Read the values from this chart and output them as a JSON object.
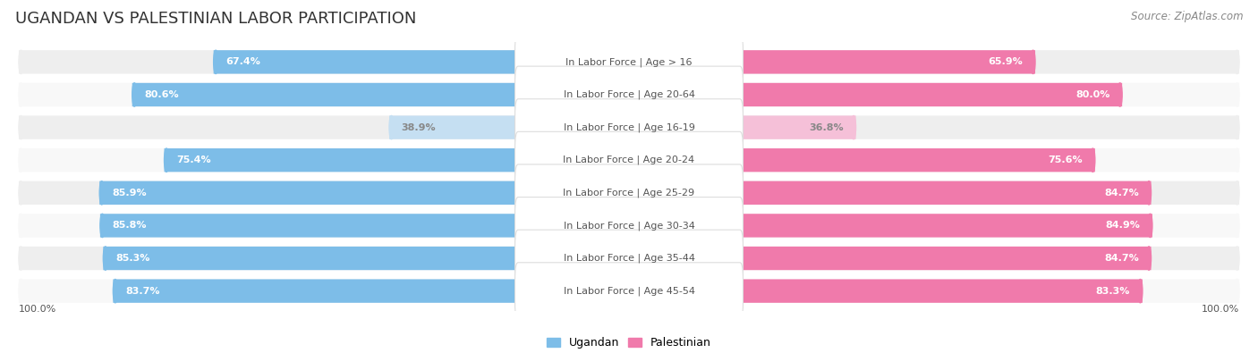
{
  "title": "UGANDAN VS PALESTINIAN LABOR PARTICIPATION",
  "source": "Source: ZipAtlas.com",
  "categories": [
    "In Labor Force | Age > 16",
    "In Labor Force | Age 20-64",
    "In Labor Force | Age 16-19",
    "In Labor Force | Age 20-24",
    "In Labor Force | Age 25-29",
    "In Labor Force | Age 30-34",
    "In Labor Force | Age 35-44",
    "In Labor Force | Age 45-54"
  ],
  "ugandan_values": [
    67.4,
    80.6,
    38.9,
    75.4,
    85.9,
    85.8,
    85.3,
    83.7
  ],
  "palestinian_values": [
    65.9,
    80.0,
    36.8,
    75.6,
    84.7,
    84.9,
    84.7,
    83.3
  ],
  "ugandan_color": "#7dbde8",
  "ugandan_color_light": "#c5dff2",
  "palestinian_color": "#f07aab",
  "palestinian_color_light": "#f5c0d8",
  "bg_color_even": "#eeeeee",
  "bg_color_odd": "#f8f8f8",
  "label_bg": "#ffffff",
  "legend_ugandan": "Ugandan",
  "legend_palestinian": "Palestinian",
  "x_tick_label": "100.0%",
  "title_fontsize": 13,
  "value_fontsize": 8,
  "label_fontsize": 8,
  "source_fontsize": 8.5
}
